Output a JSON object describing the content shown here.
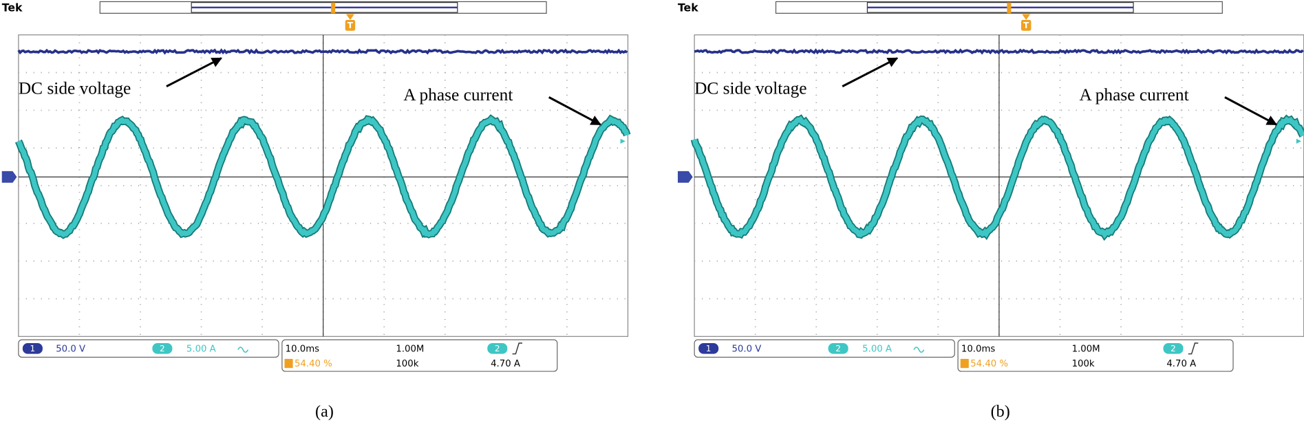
{
  "panels": [
    {
      "brand": "Tek",
      "trigger_marker": "T",
      "annotations": [
        "DC side voltage",
        "A phase current"
      ],
      "ch1": {
        "badge": "1",
        "scale": "50.0 V"
      },
      "ch2": {
        "badge": "2",
        "scale": "5.00 A"
      },
      "timebase": "10.0ms",
      "record_length": "1.00M",
      "trigger_position": "54.40 %",
      "sample_rate": "100k",
      "trigger": {
        "badge": "2",
        "level": "4.70 A"
      },
      "caption": "(a)"
    },
    {
      "brand": "Tek",
      "trigger_marker": "T",
      "annotations": [
        "DC side voltage",
        "A phase current"
      ],
      "ch1": {
        "badge": "1",
        "scale": "50.0 V"
      },
      "ch2": {
        "badge": "2",
        "scale": "5.00 A"
      },
      "timebase": "10.0ms",
      "record_length": "1.00M",
      "trigger_position": "54.40 %",
      "sample_rate": "100k",
      "trigger": {
        "badge": "2",
        "level": "4.70 A"
      },
      "caption": "(b)"
    }
  ]
}
